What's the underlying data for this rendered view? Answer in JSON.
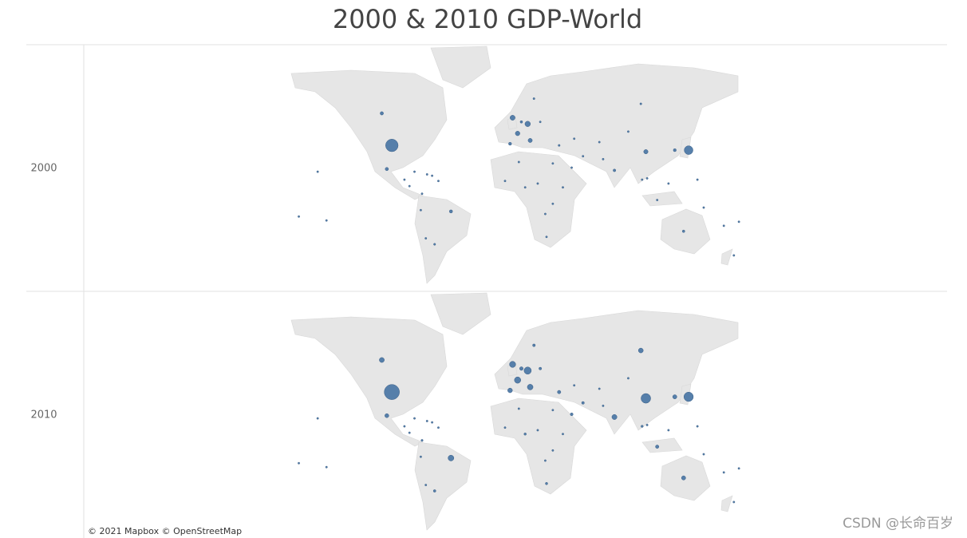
{
  "title": "2000 & 2010 GDP-World",
  "attribution": "© 2021 Mapbox © OpenStreetMap",
  "watermark": "CSDN @长命百岁",
  "points": [
    {
      "lon": -98,
      "lat": 39
    },
    {
      "lon": 104,
      "lat": 35
    },
    {
      "lon": 138,
      "lat": 36
    },
    {
      "lon": 10,
      "lat": 51
    },
    {
      "lon": -2,
      "lat": 54
    },
    {
      "lon": 2,
      "lat": 46
    },
    {
      "lon": 12,
      "lat": 42
    },
    {
      "lon": -51,
      "lat": -10
    },
    {
      "lon": -106,
      "lat": 56
    },
    {
      "lon": 79,
      "lat": 22
    },
    {
      "lon": 100,
      "lat": 60
    },
    {
      "lon": -102,
      "lat": 23
    },
    {
      "lon": -4,
      "lat": 40
    },
    {
      "lon": 134,
      "lat": -25
    },
    {
      "lon": 127,
      "lat": 36
    },
    {
      "lon": 5,
      "lat": 52
    },
    {
      "lon": 35,
      "lat": 39
    },
    {
      "lon": 45,
      "lat": 24
    },
    {
      "lon": 20,
      "lat": 52
    },
    {
      "lon": 15,
      "lat": 62
    },
    {
      "lon": -64,
      "lat": -34
    },
    {
      "lon": 25,
      "lat": -29
    },
    {
      "lon": 113,
      "lat": -1
    },
    {
      "lon": 101,
      "lat": 15
    },
    {
      "lon": 54,
      "lat": 32
    },
    {
      "lon": -74,
      "lat": 4
    },
    {
      "lon": 30,
      "lat": 27
    },
    {
      "lon": 8,
      "lat": 9
    },
    {
      "lon": -71,
      "lat": -30
    },
    {
      "lon": 122,
      "lat": 12
    },
    {
      "lon": 105,
      "lat": 16
    },
    {
      "lon": 174,
      "lat": -41
    },
    {
      "lon": -75,
      "lat": -9
    },
    {
      "lon": 70,
      "lat": 30
    },
    {
      "lon": 3,
      "lat": 28
    },
    {
      "lon": 38,
      "lat": 9
    },
    {
      "lon": 18,
      "lat": 12
    },
    {
      "lon": 24,
      "lat": -12
    },
    {
      "lon": 30,
      "lat": -4
    },
    {
      "lon": -8,
      "lat": 14
    },
    {
      "lon": -80,
      "lat": 21
    },
    {
      "lon": -70,
      "lat": 19
    },
    {
      "lon": -66,
      "lat": 18
    },
    {
      "lon": -61,
      "lat": 14
    },
    {
      "lon": -88,
      "lat": 15
    },
    {
      "lon": -84,
      "lat": 10
    },
    {
      "lon": 47,
      "lat": 43
    },
    {
      "lon": 67,
      "lat": 41
    },
    {
      "lon": 90,
      "lat": 47
    },
    {
      "lon": 150,
      "lat": -7
    },
    {
      "lon": 166,
      "lat": -21
    },
    {
      "lon": 178,
      "lat": -18
    },
    {
      "lon": -157,
      "lat": 21
    },
    {
      "lon": -172,
      "lat": -14
    },
    {
      "lon": -150,
      "lat": -17
    },
    {
      "lon": 145,
      "lat": 15
    }
  ],
  "panels": [
    {
      "label": "2000",
      "gdp": [
        10.25,
        1.21,
        4.97,
        1.95,
        1.66,
        1.36,
        1.14,
        0.66,
        0.74,
        0.47,
        0.26,
        0.71,
        0.6,
        0.42,
        0.58,
        0.41,
        0.27,
        0.19,
        0.17,
        0.26,
        0.28,
        0.14,
        0.17,
        0.13,
        0.11,
        0.1,
        0.1,
        0.07,
        0.08,
        0.08,
        0.03,
        0.05,
        0.05,
        0.07,
        0.05,
        0.01,
        0.01,
        0.01,
        0.01,
        0.01,
        0.03,
        0.02,
        0.06,
        0.01,
        0.01,
        0.02,
        0.01,
        0.01,
        0.01,
        0.01,
        0.01,
        0.01,
        0.01,
        0.01,
        0.01,
        0.01
      ]
    },
    {
      "label": "2010",
      "gdp": [
        14.99,
        6.09,
        5.76,
        3.42,
        2.48,
        2.64,
        2.13,
        2.21,
        1.62,
        1.68,
        1.52,
        1.06,
        1.43,
        1.15,
        1.14,
        0.84,
        0.77,
        0.53,
        0.48,
        0.49,
        0.43,
        0.38,
        0.76,
        0.34,
        0.49,
        0.29,
        0.22,
        0.37,
        0.22,
        0.21,
        0.12,
        0.15,
        0.15,
        0.18,
        0.16,
        0.03,
        0.02,
        0.02,
        0.02,
        0.01,
        0.06,
        0.05,
        0.1,
        0.01,
        0.03,
        0.04,
        0.05,
        0.04,
        0.01,
        0.01,
        0.01,
        0.01,
        0.01,
        0.01,
        0.01,
        0.01
      ]
    }
  ]
}
